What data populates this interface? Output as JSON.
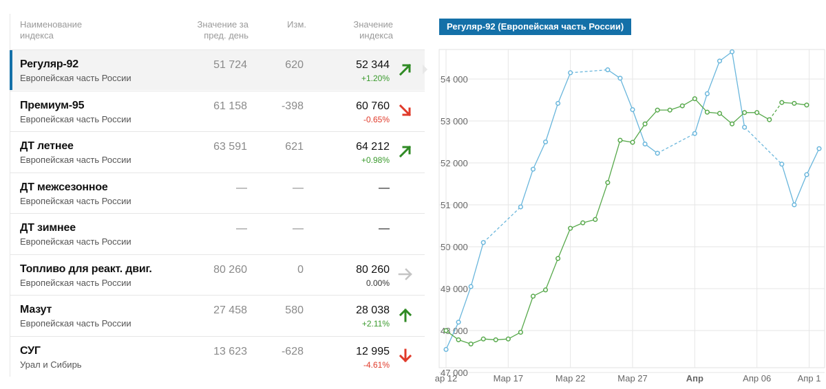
{
  "table": {
    "headers": {
      "name": "Наименование\nиндекса",
      "prev": "Значение за\nпред. день",
      "change": "Изм.",
      "value": "Значение\nиндекса"
    },
    "rows": [
      {
        "name": "Регуляр-92",
        "region": "Европейская часть России",
        "prev": "51 724",
        "change": "620",
        "value": "52 344",
        "pct": "+1.20%",
        "trend": "up-right",
        "selected": true
      },
      {
        "name": "Премиум-95",
        "region": "Европейская часть России",
        "prev": "61 158",
        "change": "-398",
        "value": "60 760",
        "pct": "-0.65%",
        "trend": "down-right",
        "selected": false
      },
      {
        "name": "ДТ летнее",
        "region": "Европейская часть России",
        "prev": "63 591",
        "change": "621",
        "value": "64 212",
        "pct": "+0.98%",
        "trend": "up-right",
        "selected": false
      },
      {
        "name": "ДТ межсезонное",
        "region": "Европейская часть России",
        "prev": "—",
        "change": "—",
        "value": "—",
        "pct": "",
        "trend": "none",
        "selected": false
      },
      {
        "name": "ДТ зимнее",
        "region": "Европейская часть России",
        "prev": "—",
        "change": "—",
        "value": "—",
        "pct": "",
        "trend": "none",
        "selected": false
      },
      {
        "name": "Топливо для реакт. двиг.",
        "region": "Европейская часть России",
        "prev": "80 260",
        "change": "0",
        "value": "80 260",
        "pct": "0.00%",
        "trend": "flat",
        "selected": false
      },
      {
        "name": "Мазут",
        "region": "Европейская часть России",
        "prev": "27 458",
        "change": "580",
        "value": "28 038",
        "pct": "+2.11%",
        "trend": "up",
        "selected": false
      },
      {
        "name": "СУГ",
        "region": "Урал и Сибирь",
        "prev": "13 623",
        "change": "-628",
        "value": "12 995",
        "pct": "-4.61%",
        "trend": "down",
        "selected": false
      }
    ]
  },
  "colors": {
    "accent": "#1470a8",
    "up": "#3a9a2d",
    "down": "#e03a2a",
    "flat": "#bfbfbf",
    "series_blue": "#69b6dc",
    "series_green": "#56a84a"
  },
  "chart_data": {
    "type": "line",
    "title": "Регуляр-92 (Европейская часть России)",
    "xlabel": "",
    "ylabel": "",
    "ylim": [
      47000,
      55000
    ],
    "yticks": [
      47000,
      48000,
      49000,
      50000,
      51000,
      52000,
      53000,
      54000
    ],
    "ytick_labels": [
      "47 000",
      "48 000",
      "49 000",
      "50 000",
      "51 000",
      "52 000",
      "53 000",
      "54 000"
    ],
    "xlim": [
      0,
      29.5
    ],
    "xticks": [
      {
        "x": 0,
        "label": "ар 12",
        "bold": false
      },
      {
        "x": 5,
        "label": "Мар 17",
        "bold": false
      },
      {
        "x": 10,
        "label": "Мар 22",
        "bold": false
      },
      {
        "x": 15,
        "label": "Мар 27",
        "bold": false
      },
      {
        "x": 20,
        "label": "Апр",
        "bold": true
      },
      {
        "x": 25,
        "label": "Апр 06",
        "bold": false
      },
      {
        "x": 29.2,
        "label": "Апр 1",
        "bold": false
      }
    ],
    "grid": true,
    "legend": "none",
    "series": [
      {
        "color": "#69b6dc",
        "points": [
          {
            "x": 0,
            "y": 47550
          },
          {
            "x": 1,
            "y": 48200
          },
          {
            "x": 2,
            "y": 49050
          },
          {
            "x": 3,
            "y": 50100
          },
          {
            "x": 6,
            "y": 50950
          },
          {
            "x": 7,
            "y": 51850
          },
          {
            "x": 8,
            "y": 52500
          },
          {
            "x": 9,
            "y": 53420
          },
          {
            "x": 10,
            "y": 54150
          },
          {
            "x": 13,
            "y": 54220
          },
          {
            "x": 14,
            "y": 54020
          },
          {
            "x": 15,
            "y": 53270
          },
          {
            "x": 16,
            "y": 52450
          },
          {
            "x": 17,
            "y": 52230
          },
          {
            "x": 20,
            "y": 52700
          },
          {
            "x": 21,
            "y": 53650
          },
          {
            "x": 22,
            "y": 54430
          },
          {
            "x": 23,
            "y": 54650
          },
          {
            "x": 24,
            "y": 52850
          },
          {
            "x": 27,
            "y": 51970
          },
          {
            "x": 28,
            "y": 51000
          },
          {
            "x": 29,
            "y": 51720
          },
          {
            "x": 30,
            "y": 52340
          }
        ],
        "dashed_gaps": [
          [
            3,
            6
          ],
          [
            10,
            13
          ],
          [
            17,
            20
          ],
          [
            24,
            27
          ]
        ]
      },
      {
        "color": "#56a84a",
        "points": [
          {
            "x": 0,
            "y": 48000
          },
          {
            "x": 1,
            "y": 47780
          },
          {
            "x": 2,
            "y": 47680
          },
          {
            "x": 3,
            "y": 47800
          },
          {
            "x": 4,
            "y": 47780
          },
          {
            "x": 5,
            "y": 47800
          },
          {
            "x": 6,
            "y": 47960
          },
          {
            "x": 7,
            "y": 48820
          },
          {
            "x": 8,
            "y": 48970
          },
          {
            "x": 9,
            "y": 49720
          },
          {
            "x": 10,
            "y": 50440
          },
          {
            "x": 11,
            "y": 50570
          },
          {
            "x": 12,
            "y": 50650
          },
          {
            "x": 13,
            "y": 51530
          },
          {
            "x": 14,
            "y": 52540
          },
          {
            "x": 15,
            "y": 52490
          },
          {
            "x": 16,
            "y": 52930
          },
          {
            "x": 17,
            "y": 53260
          },
          {
            "x": 18,
            "y": 53260
          },
          {
            "x": 19,
            "y": 53360
          },
          {
            "x": 20,
            "y": 53530
          },
          {
            "x": 21,
            "y": 53210
          },
          {
            "x": 22,
            "y": 53180
          },
          {
            "x": 23,
            "y": 52930
          },
          {
            "x": 24,
            "y": 53200
          },
          {
            "x": 25,
            "y": 53200
          },
          {
            "x": 26,
            "y": 53030
          },
          {
            "x": 27,
            "y": 53440
          },
          {
            "x": 28,
            "y": 53420
          },
          {
            "x": 29,
            "y": 53380
          }
        ],
        "dashed_gaps": [
          [
            26,
            27
          ]
        ]
      }
    ]
  }
}
